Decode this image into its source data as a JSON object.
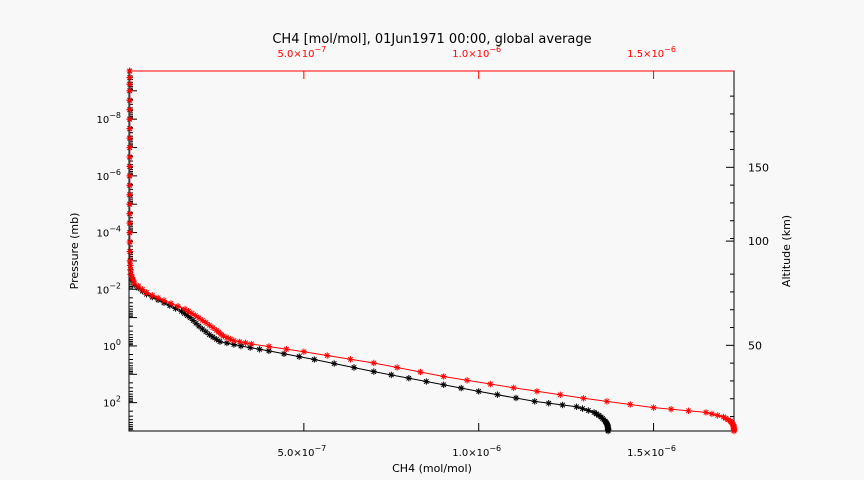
{
  "chart_data": {
    "type": "line",
    "title": "CH4 [mol/mol], 01Jun1971 00:00, global average",
    "xlabel": "CH4 (mol/mol)",
    "ylabel_left": "Pressure (mb)",
    "ylabel_right": "Altitude (km)",
    "x_scale": "linear",
    "y_scale": "log",
    "y_inverted": true,
    "xlim": [
      0,
      1.73e-06
    ],
    "top_xlim": [
      0,
      1.73e-06
    ],
    "ylim": [
      1000,
      2e-10
    ],
    "x_ticks": [
      {
        "value": 5e-07,
        "mantissa": "5.0×10",
        "exp": "−7"
      },
      {
        "value": 1e-06,
        "mantissa": "1.0×10",
        "exp": "−6"
      },
      {
        "value": 1.5e-06,
        "mantissa": "1.5×10",
        "exp": "−6"
      }
    ],
    "y_ticks": [
      {
        "value": 1e-08,
        "base": "10",
        "exp": "−8"
      },
      {
        "value": 1e-06,
        "base": "10",
        "exp": "−6"
      },
      {
        "value": 0.0001,
        "base": "10",
        "exp": "−4"
      },
      {
        "value": 0.01,
        "base": "10",
        "exp": "−2"
      },
      {
        "value": 1,
        "base": "10",
        "exp": "0"
      },
      {
        "value": 100,
        "base": "10",
        "exp": "2"
      }
    ],
    "right_ticks": [
      {
        "value": 50,
        "pressure": 0.95,
        "label": "50"
      },
      {
        "value": 100,
        "pressure": 0.0002,
        "label": "100"
      },
      {
        "value": 150,
        "pressure": 5e-07,
        "label": "150"
      }
    ],
    "grid": false,
    "series": [
      {
        "color": "#000000",
        "points": [
          [
            1.37e-06,
            1000
          ],
          [
            1.37e-06,
            800
          ],
          [
            1.368e-06,
            600
          ],
          [
            1.362e-06,
            450
          ],
          [
            1.35e-06,
            320
          ],
          [
            1.33e-06,
            220
          ],
          [
            1.28e-06,
            140
          ],
          [
            1.16e-06,
            90
          ],
          [
            1e-06,
            40
          ],
          [
            8.5e-07,
            18
          ],
          [
            7e-07,
            8
          ],
          [
            5.3e-07,
            3
          ],
          [
            4e-07,
            1.5
          ],
          [
            3.2e-07,
            1.0
          ],
          [
            2.6e-07,
            0.7
          ],
          [
            2.3e-07,
            0.4
          ],
          [
            2e-07,
            0.2
          ],
          [
            1.75e-07,
            0.1
          ],
          [
            1.5e-07,
            0.06
          ],
          [
            1e-07,
            0.03
          ],
          [
            5e-08,
            0.015
          ],
          [
            1.5e-08,
            0.007
          ],
          [
            5e-09,
            0.003
          ],
          [
            3e-09,
            0.001
          ],
          [
            2e-09,
            0.0001
          ],
          [
            2e-09,
            1e-05
          ],
          [
            2e-09,
            1e-06
          ],
          [
            2e-09,
            1e-07
          ],
          [
            2e-09,
            1e-08
          ],
          [
            2e-09,
            1e-09
          ],
          [
            2e-09,
            2e-10
          ]
        ]
      },
      {
        "color": "#ff0000",
        "points": [
          [
            1.73e-06,
            1000
          ],
          [
            1.73e-06,
            800
          ],
          [
            1.728e-06,
            600
          ],
          [
            1.72e-06,
            450
          ],
          [
            1.7e-06,
            320
          ],
          [
            1.65e-06,
            220
          ],
          [
            1.5e-06,
            150
          ],
          [
            1.3e-06,
            70
          ],
          [
            1.1e-06,
            30
          ],
          [
            9e-07,
            12
          ],
          [
            7e-07,
            4
          ],
          [
            5e-07,
            1.6
          ],
          [
            3.5e-07,
            0.85
          ],
          [
            3e-07,
            0.65
          ],
          [
            2.7e-07,
            0.45
          ],
          [
            2.5e-07,
            0.28
          ],
          [
            2.2e-07,
            0.15
          ],
          [
            1.9e-07,
            0.085
          ],
          [
            1.6e-07,
            0.05
          ],
          [
            1e-07,
            0.025
          ],
          [
            5e-08,
            0.013
          ],
          [
            1.5e-08,
            0.006
          ],
          [
            6e-09,
            0.003
          ],
          [
            3e-09,
            0.001
          ],
          [
            2e-09,
            0.0001
          ],
          [
            2e-09,
            1e-05
          ],
          [
            2e-09,
            1e-06
          ],
          [
            2e-09,
            1e-07
          ],
          [
            2e-09,
            1e-08
          ],
          [
            2e-09,
            1e-09
          ],
          [
            2e-09,
            2e-10
          ]
        ]
      }
    ]
  },
  "colors": {
    "background": "#f8f8f8",
    "axis": "#000000",
    "top_axis": "#ff0000"
  }
}
